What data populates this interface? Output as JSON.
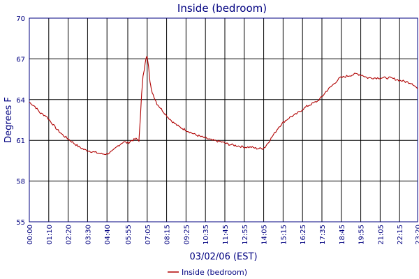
{
  "colors": {
    "axis": "#000080",
    "grid": "#000000",
    "series": "#b00000",
    "background": "#ffffff"
  },
  "chart_data": {
    "type": "line",
    "title": "Inside (bedroom)",
    "xlabel": "03/02/06 (EST)",
    "ylabel": "Degrees F",
    "xlim_minutes": [
      0,
      1400
    ],
    "ylim": [
      55,
      70
    ],
    "yticks": [
      55,
      58,
      61,
      64,
      67,
      70
    ],
    "xticks": [
      "00:00",
      "01:10",
      "02:20",
      "03:30",
      "04:40",
      "05:55",
      "07:05",
      "08:15",
      "09:25",
      "10:35",
      "11:45",
      "12:55",
      "14:05",
      "15:15",
      "16:25",
      "17:35",
      "18:45",
      "19:55",
      "21:05",
      "22:15",
      "23:20"
    ],
    "grid": true,
    "legend_position": "bottom-center",
    "series": [
      {
        "name": "Inside (bedroom)",
        "x_time": [
          "00:00",
          "00:20",
          "00:40",
          "01:00",
          "01:20",
          "01:40",
          "02:00",
          "02:20",
          "02:40",
          "03:00",
          "03:20",
          "03:40",
          "04:00",
          "04:20",
          "04:40",
          "05:00",
          "05:20",
          "05:40",
          "05:55",
          "06:10",
          "06:25",
          "06:35",
          "06:40",
          "06:45",
          "06:50",
          "06:55",
          "07:00",
          "07:05",
          "07:10",
          "07:15",
          "07:20",
          "07:30",
          "07:40",
          "08:00",
          "08:20",
          "08:40",
          "09:00",
          "09:30",
          "10:00",
          "10:30",
          "11:00",
          "11:30",
          "12:00",
          "12:30",
          "12:55",
          "13:20",
          "13:40",
          "14:00",
          "14:10",
          "14:20",
          "14:40",
          "15:00",
          "15:20",
          "15:40",
          "16:00",
          "16:20",
          "16:40",
          "17:00",
          "17:20",
          "17:35",
          "17:50",
          "18:00",
          "18:20",
          "18:40",
          "19:00",
          "19:20",
          "19:40",
          "20:00",
          "20:20",
          "20:40",
          "21:00",
          "21:20",
          "21:40",
          "22:00",
          "22:20",
          "22:40",
          "23:00",
          "23:10",
          "23:20"
        ],
        "values": [
          63.8,
          63.5,
          63.0,
          62.8,
          62.3,
          61.8,
          61.4,
          61.1,
          60.8,
          60.5,
          60.3,
          60.2,
          60.1,
          60.0,
          60.0,
          60.2,
          60.6,
          60.9,
          60.8,
          61.0,
          61.1,
          61.0,
          62.5,
          64.5,
          65.7,
          66.2,
          67.0,
          67.2,
          66.5,
          65.3,
          64.7,
          64.2,
          63.7,
          63.2,
          62.7,
          62.3,
          62.0,
          61.7,
          61.4,
          61.2,
          61.0,
          60.9,
          60.7,
          60.6,
          60.5,
          60.5,
          60.4,
          60.4,
          60.5,
          60.8,
          61.4,
          62.0,
          62.4,
          62.7,
          62.9,
          63.2,
          63.5,
          63.7,
          63.9,
          64.2,
          64.6,
          64.8,
          65.2,
          65.6,
          65.7,
          65.8,
          65.9,
          65.8,
          65.6,
          65.6,
          65.6,
          65.6,
          65.6,
          65.5,
          65.4,
          65.3,
          65.2,
          65.0,
          64.8
        ]
      }
    ]
  }
}
